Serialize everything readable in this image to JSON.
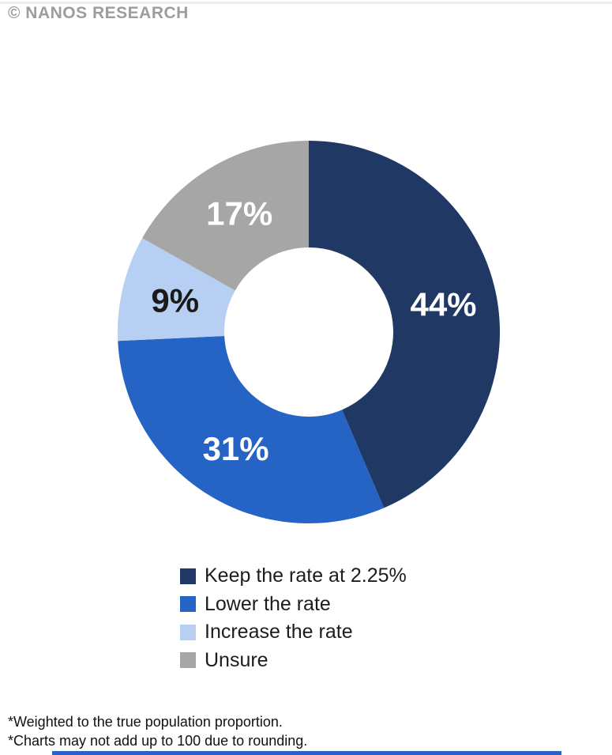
{
  "header": {
    "copyright": "© NANOS RESEARCH"
  },
  "chart_data": {
    "type": "pie",
    "style": "donut",
    "direction": "clockwise",
    "start_angle_deg": 0,
    "inner_radius_ratio": 0.44,
    "legend_position": "bottom",
    "segments": [
      {
        "label": "Keep the rate at 2.25%",
        "value": 44,
        "display": "44%",
        "color": "#1f3864",
        "label_color": "#ffffff"
      },
      {
        "label": "Lower the rate",
        "value": 31,
        "display": "31%",
        "color": "#2563c4",
        "label_color": "#ffffff"
      },
      {
        "label": "Increase the rate",
        "value": 9,
        "display": "9%",
        "color": "#b6cff2",
        "label_color": "#1a1a1a"
      },
      {
        "label": "Unsure",
        "value": 17,
        "display": "17%",
        "color": "#a6a6a6",
        "label_color": "#ffffff"
      }
    ]
  },
  "footnotes": [
    "*Weighted to the true population proportion.",
    "*Charts may not add up to 100 due to rounding."
  ],
  "footer_bar_color": "#2563c4",
  "colors": {
    "header_text": "#9d9d9d",
    "top_line": "#ededed"
  }
}
